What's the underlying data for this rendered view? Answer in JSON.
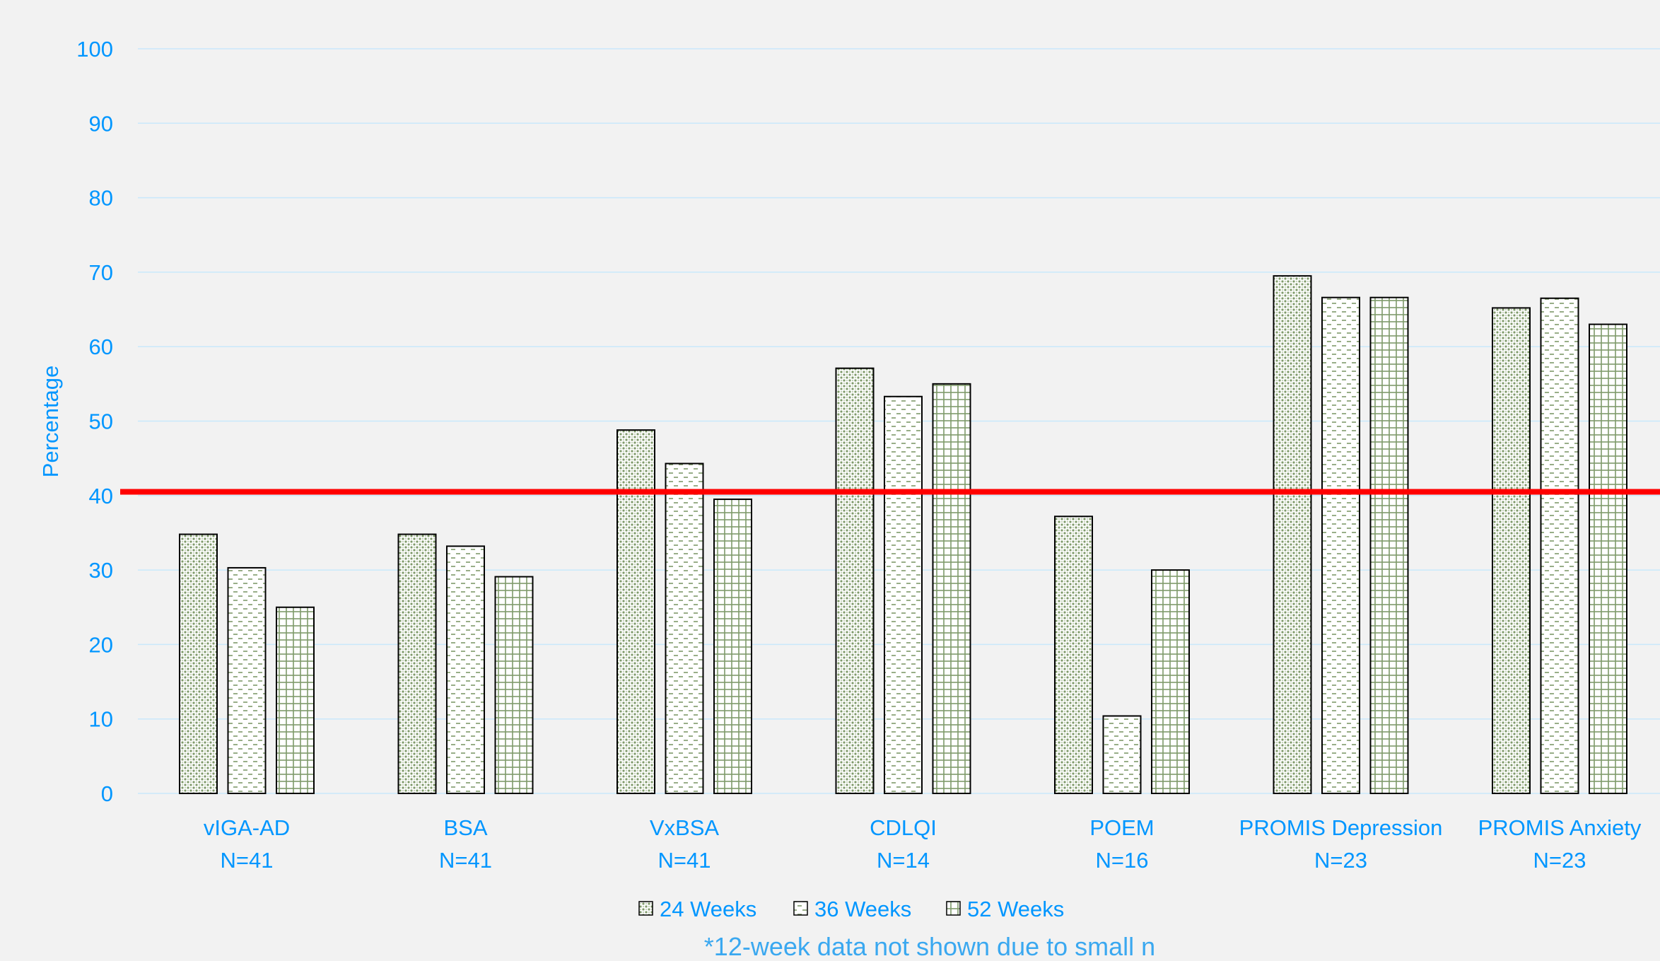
{
  "chart_data": {
    "type": "bar",
    "title": "",
    "xlabel": "",
    "ylabel": "Percentage",
    "ylim": [
      0,
      100
    ],
    "yticks": [
      "0",
      "10",
      "20",
      "30",
      "40",
      "50",
      "60",
      "70",
      "80",
      "90",
      "100"
    ],
    "grid": true,
    "legend_position": "bottom",
    "categories": [
      {
        "name": "vIGA-AD",
        "n": "N=41"
      },
      {
        "name": "BSA",
        "n": "N=41"
      },
      {
        "name": "VxBSA",
        "n": "N=41"
      },
      {
        "name": "CDLQI",
        "n": "N=14"
      },
      {
        "name": "POEM",
        "n": "N=16"
      },
      {
        "name": "PROMIS Depression",
        "n": "N=23"
      },
      {
        "name": "PROMIS Anxiety",
        "n": "N=23"
      }
    ],
    "series": [
      {
        "name": "24 Weeks",
        "pattern": "dots",
        "values": [
          34.8,
          34.8,
          48.8,
          57.1,
          37.2,
          69.5,
          65.2
        ]
      },
      {
        "name": "36 Weeks",
        "pattern": "dashes",
        "values": [
          30.3,
          33.2,
          44.3,
          53.3,
          10.4,
          66.6,
          66.5
        ]
      },
      {
        "name": "52 Weeks",
        "pattern": "grid",
        "values": [
          25.0,
          29.1,
          39.5,
          55.0,
          30.0,
          66.6,
          63.0
        ]
      }
    ],
    "reference_line": {
      "value": 40.5,
      "color": "#ff0000"
    },
    "footnote": "*12-week data not shown due to small n",
    "colors": {
      "text": "#0096ff",
      "gridline": "#c9e8fb",
      "bar_outline": "#000000",
      "bar_fill": "#ffffff",
      "pattern": "#7f9a6a",
      "background": "#f2f2f2"
    }
  }
}
